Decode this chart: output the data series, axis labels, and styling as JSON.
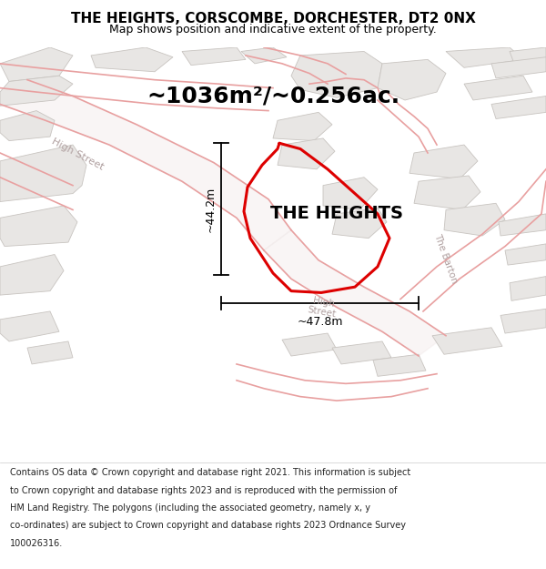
{
  "title": "THE HEIGHTS, CORSCOMBE, DORCHESTER, DT2 0NX",
  "subtitle": "Map shows position and indicative extent of the property.",
  "area_label": "~1036m²/~0.256ac.",
  "property_label": "THE HEIGHTS",
  "dim_vertical": "~44.2m",
  "dim_horizontal": "~47.8m",
  "footer_lines": [
    "Contains OS data © Crown copyright and database right 2021. This information is subject",
    "to Crown copyright and database rights 2023 and is reproduced with the permission of",
    "HM Land Registry. The polygons (including the associated geometry, namely x, y",
    "co-ordinates) are subject to Crown copyright and database rights 2023 Ordnance Survey",
    "100026316."
  ],
  "bg_color": "#ffffff",
  "map_bg": "#ffffff",
  "road_line_color": "#e8a0a0",
  "road_fill_color": "#f0e8e8",
  "building_fill_color": "#e8e6e4",
  "building_edge_color": "#c8c4c0",
  "property_outline_color": "#dd0000",
  "dim_color": "#000000",
  "title_color": "#000000",
  "road_label_color": "#b0a0a0",
  "title_fontsize": 11,
  "subtitle_fontsize": 9,
  "area_fontsize": 18,
  "property_label_fontsize": 14,
  "dim_fontsize": 9,
  "footer_fontsize": 7.0,
  "fig_width": 6.0,
  "fig_height": 6.25
}
